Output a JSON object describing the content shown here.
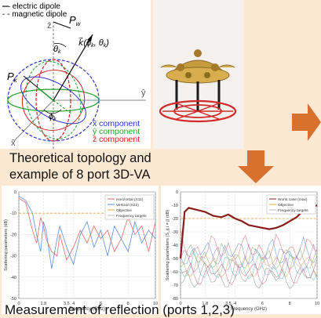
{
  "legend_top": {
    "electric": "— electric dipole",
    "magnetic": "- - magnetic dipole"
  },
  "math": {
    "pw": "P",
    "pw_sub": "w",
    "pk": "P",
    "pk_sub": "k",
    "theta_k": "θ",
    "theta_sub": "k",
    "phi_k": "ϕ",
    "phi_sub": "k",
    "kvec": "k⃗(ϕ",
    "kvec_tail": "k",
    "kvec_end": ", θ",
    "kvec_end_sub": "k",
    "kvec_close": ")",
    "z_axis": "ẑ",
    "y_axis": "ŷ",
    "x_axis": "x̂"
  },
  "component_legend": [
    {
      "sym": "x̂",
      "text": "component",
      "color": "#2a35c8"
    },
    {
      "sym": "ŷ",
      "text": "component",
      "color": "#21a02a"
    },
    {
      "sym": "ẑ",
      "text": "component",
      "color": "#d42020"
    }
  ],
  "caption": {
    "line1": "Theoretical topology and",
    "line2": "example of 8 port 3D-VA"
  },
  "bottom_caption": "Measurement of reflection (ports 1,2,3)",
  "colors": {
    "background": "#fde9d3",
    "arrow": "#d8712b",
    "electric": "#2a35c8",
    "magnetic": "#d42020",
    "y_comp": "#21a02a"
  },
  "chart_data": [
    {
      "type": "line",
      "title": "",
      "xlabel": "Frequency (GHz)",
      "ylabel": "Scattering parameters (dB)",
      "xlim": [
        0,
        10
      ],
      "ylim": [
        -50,
        0
      ],
      "x_ticks": [
        "0",
        "1.8",
        "3.5",
        "4",
        "6",
        "8",
        "10"
      ],
      "y_ticks": [
        "0",
        "-10",
        "-20",
        "-30",
        "-40",
        "-50"
      ],
      "legend": [
        "Horizontal (S11)",
        "Vertical (S22)",
        "Objective",
        "Frequency targets"
      ],
      "series": [
        {
          "name": "Horizontal (S11)",
          "x": [
            0,
            0.5,
            1.0,
            1.3,
            1.6,
            1.8,
            2.0,
            2.4,
            2.8,
            3.0,
            3.5,
            4.0,
            4.5,
            5.0,
            5.5,
            6.0,
            6.5,
            7.0,
            7.5,
            8.0,
            8.5,
            9.0,
            9.5,
            10
          ],
          "values": [
            -3,
            -5,
            -18,
            -24,
            -12,
            -16,
            -22,
            -28,
            -30,
            -20,
            -32,
            -26,
            -18,
            -24,
            -16,
            -22,
            -18,
            -28,
            -22,
            -12,
            -20,
            -16,
            -28,
            -14
          ]
        },
        {
          "name": "Vertical (S22)",
          "x": [
            0,
            0.5,
            1.0,
            1.3,
            1.6,
            1.8,
            2.0,
            2.4,
            2.8,
            3.0,
            3.5,
            4.0,
            4.5,
            5.0,
            5.5,
            6.0,
            6.5,
            7.0,
            7.5,
            8.0,
            8.5,
            9.0,
            9.5,
            10
          ],
          "values": [
            -2,
            -4,
            -10,
            -20,
            -28,
            -14,
            -18,
            -36,
            -22,
            -16,
            -26,
            -34,
            -20,
            -14,
            -26,
            -18,
            -30,
            -16,
            -22,
            -28,
            -14,
            -24,
            -18,
            -22
          ]
        }
      ]
    },
    {
      "type": "line",
      "title": "",
      "xlabel": "Frequency (GHz)",
      "ylabel": "Scattering parameters (S_ij i ≠ j) (dB)",
      "xlim": [
        0,
        10
      ],
      "ylim": [
        -80,
        0
      ],
      "x_ticks": [
        "0",
        "1.8",
        "3.5",
        "4",
        "6",
        "8",
        "10"
      ],
      "y_ticks": [
        "0",
        "-10",
        "-20",
        "-30",
        "-40",
        "-50",
        "-60",
        "-70",
        "-80"
      ],
      "legend": [
        "Worst case (max)",
        "Objective",
        "Frequency targets"
      ],
      "series": [
        {
          "name": "Worst case (max)",
          "x": [
            0,
            0.3,
            0.6,
            1.0,
            1.4,
            1.8,
            2.4,
            3.0,
            3.5,
            4.0,
            4.5,
            5.0,
            5.5,
            6.0,
            6.5,
            7.0,
            7.5,
            8.0,
            8.5,
            9.0,
            9.5,
            10
          ],
          "values": [
            -50,
            -15,
            -12,
            -13,
            -14,
            -15,
            -18,
            -19,
            -17,
            -20,
            -22,
            -25,
            -26,
            -27,
            -28,
            -27,
            -25,
            -22,
            -19,
            -14,
            -12,
            -10
          ]
        }
      ]
    }
  ]
}
